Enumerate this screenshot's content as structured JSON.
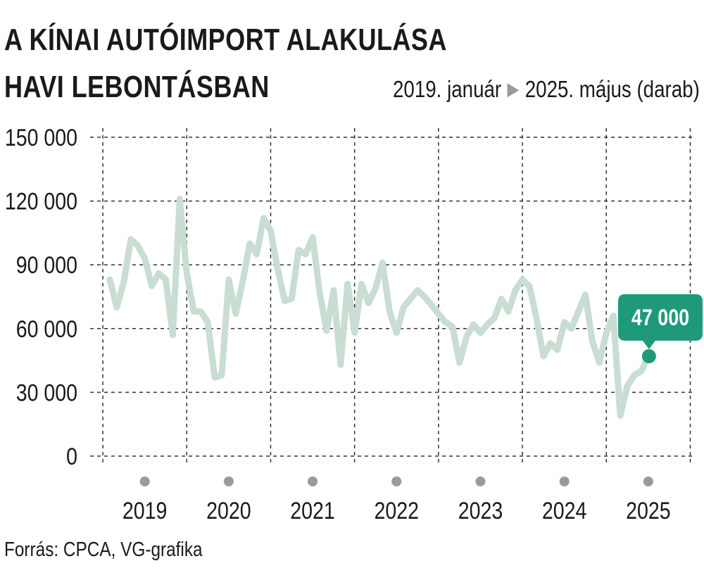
{
  "title": {
    "line1": "A KÍNAI AUTÓIMPORT ALAKULÁSA",
    "line2": "HAVI LEBONTÁSBAN"
  },
  "subtitle": {
    "start": "2019. január",
    "arrow": "▶",
    "end": "2025. május (darab)"
  },
  "source": "Forrás: CPCA, VG-grafika",
  "colors": {
    "line": "#c9ddd2",
    "accent": "#1e9a7a",
    "grid": "#333333",
    "year_marker": "#9a9a9a",
    "arrow": "#9a9a9a"
  },
  "chart_data": {
    "type": "line",
    "title": "A KÍNAI AUTÓIMPORT ALAKULÁSA HAVI LEBONTÁSBAN",
    "subtitle": "2019. január ▶ 2025. május (darab)",
    "xlabel": "",
    "ylabel": "",
    "ylim": [
      0,
      150000
    ],
    "yticks": [
      0,
      30000,
      60000,
      90000,
      120000,
      150000
    ],
    "ytick_labels": [
      "0",
      "30 000",
      "60 000",
      "90 000",
      "120 000",
      "150 000"
    ],
    "years": [
      "2019",
      "2020",
      "2021",
      "2022",
      "2023",
      "2024",
      "2025"
    ],
    "grid": true,
    "series": [
      {
        "values": [
          83000,
          70000,
          82000,
          102000,
          99000,
          93000,
          80000,
          86000,
          83000,
          57000,
          121000,
          86000,
          68000,
          68000,
          63000,
          37000,
          38000,
          83000,
          67000,
          82000,
          100000,
          95000,
          112000,
          106000,
          88000,
          73000,
          74000,
          97000,
          95000,
          103000,
          77000,
          59000,
          78000,
          43000,
          81000,
          58000,
          81000,
          72000,
          79000,
          91000,
          68000,
          58000,
          70000,
          74000,
          78000,
          75000,
          71000,
          67000,
          63000,
          61000,
          44000,
          56000,
          62000,
          58000,
          62000,
          65000,
          74000,
          68000,
          78000,
          83000,
          80000,
          65000,
          47000,
          53000,
          50000,
          63000,
          60000,
          68000,
          76000,
          54000,
          44000,
          58000,
          66000,
          19000,
          33000,
          38000,
          40000,
          47000
        ]
      }
    ],
    "annotation": {
      "label": "47 000",
      "value": 47000,
      "x_label": "2025. május"
    }
  }
}
